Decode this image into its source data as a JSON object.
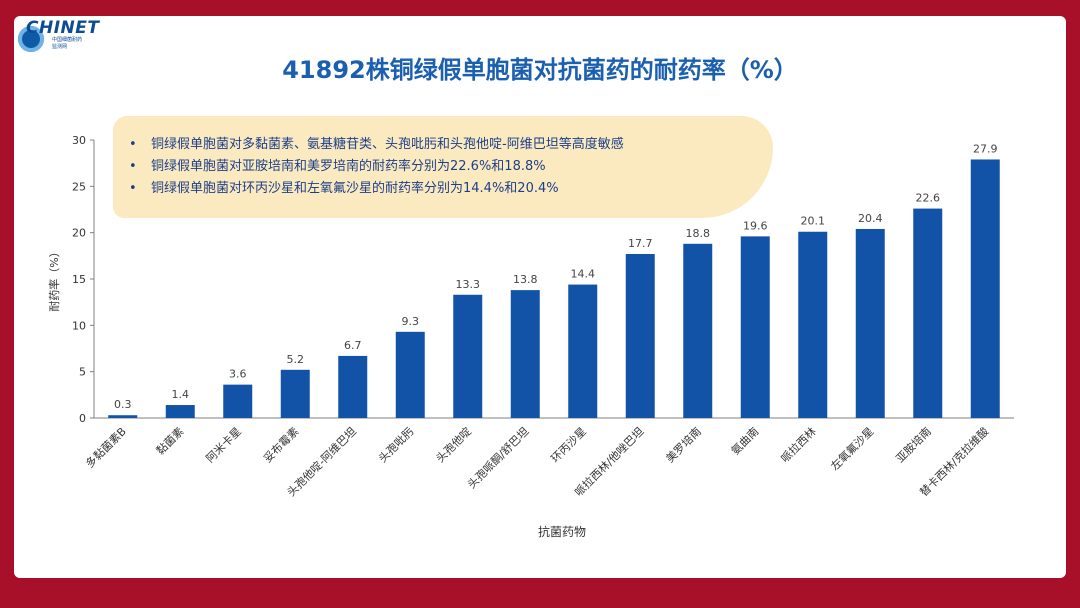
{
  "logo": {
    "brand": "CHINET",
    "sub1": "中国细菌耐药",
    "sub2": "监测网"
  },
  "title": "41892株铜绿假单胞菌对抗菌药的耐药率（%）",
  "callout": {
    "points": [
      "铜绿假单胞菌对多黏菌素、氨基糖苷类、头孢吡肟和头孢他啶-阿维巴坦等高度敏感",
      "铜绿假单胞菌对亚胺培南和美罗培南的耐药率分别为22.6%和18.8%",
      "铜绿假单胞菌对环丙沙星和左氧氟沙星的耐药率分别为14.4%和20.4%"
    ]
  },
  "chart_data": {
    "type": "bar",
    "title": "41892株铜绿假单胞菌对抗菌药的耐药率（%）",
    "xlabel": "抗菌药物",
    "ylabel": "耐药率（%）",
    "ylim": [
      0,
      30
    ],
    "yticks": [
      0,
      5,
      10,
      15,
      20,
      25,
      30
    ],
    "grid": false,
    "bar_color": "#1253a8",
    "categories": [
      "多黏菌素B",
      "黏菌素",
      "阿米卡星",
      "妥布霉素",
      "头孢他啶-阿维巴坦",
      "头孢吡肟",
      "头孢他啶",
      "头孢哌酮/舒巴坦",
      "环丙沙星",
      "哌拉西林/他唑巴坦",
      "美罗培南",
      "氨曲南",
      "哌拉西林",
      "左氧氟沙星",
      "亚胺培南",
      "替卡西林/克拉维酸"
    ],
    "values": [
      0.3,
      1.4,
      3.6,
      5.2,
      6.7,
      9.3,
      13.3,
      13.8,
      14.4,
      17.7,
      18.8,
      19.6,
      20.1,
      20.4,
      22.6,
      27.9
    ]
  }
}
